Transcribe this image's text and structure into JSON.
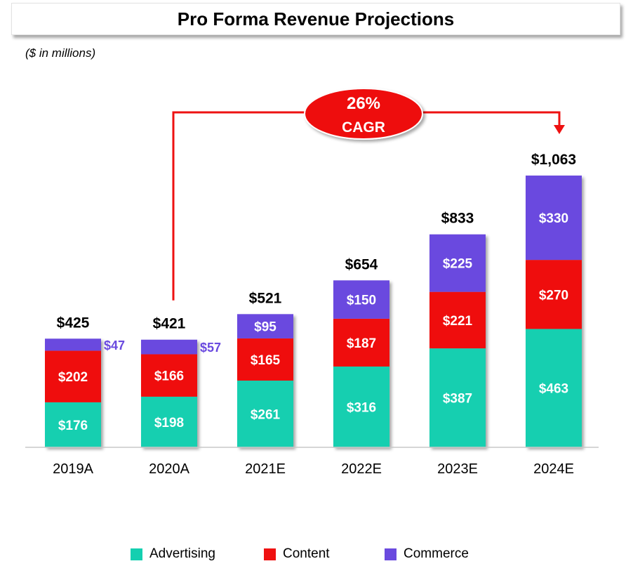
{
  "title": "Pro Forma Revenue Projections",
  "subtitle": "($ in millions)",
  "colors": {
    "advertising": "#14cfb0",
    "content": "#ef1111",
    "commerce": "#6a4adf",
    "cagr": "#ee1111",
    "commerce_label": "#6a4adf"
  },
  "cagr": {
    "value": "26%",
    "label": "CAGR",
    "from": "2020A",
    "to": "2024E"
  },
  "legend": [
    {
      "key": "advertising",
      "label": "Advertising"
    },
    {
      "key": "content",
      "label": "Content"
    },
    {
      "key": "commerce",
      "label": "Commerce"
    }
  ],
  "chart_data": {
    "type": "bar",
    "stacked": true,
    "title": "Pro Forma Revenue Projections",
    "subtitle": "($ in millions)",
    "categories": [
      "2019A",
      "2020A",
      "2021E",
      "2022E",
      "2023E",
      "2024E"
    ],
    "series": [
      {
        "name": "Advertising",
        "key": "advertising",
        "values": [
          176,
          198,
          261,
          316,
          387,
          463
        ],
        "labels": [
          "$176",
          "$198",
          "$261",
          "$316",
          "$387",
          "$463"
        ]
      },
      {
        "name": "Content",
        "key": "content",
        "values": [
          202,
          166,
          165,
          187,
          221,
          270
        ],
        "labels": [
          "$202",
          "$166",
          "$165",
          "$187",
          "$221",
          "$270"
        ]
      },
      {
        "name": "Commerce",
        "key": "commerce",
        "values": [
          47,
          57,
          95,
          150,
          225,
          330
        ],
        "labels": [
          "$47",
          "$57",
          "$95",
          "$150",
          "$225",
          "$330"
        ]
      }
    ],
    "totals": [
      425,
      421,
      521,
      654,
      833,
      1063
    ],
    "total_labels": [
      "$425",
      "$421",
      "$521",
      "$654",
      "$833",
      "$1,063"
    ],
    "ylim": [
      0,
      1063
    ],
    "legend_position": "bottom",
    "grid": false
  }
}
